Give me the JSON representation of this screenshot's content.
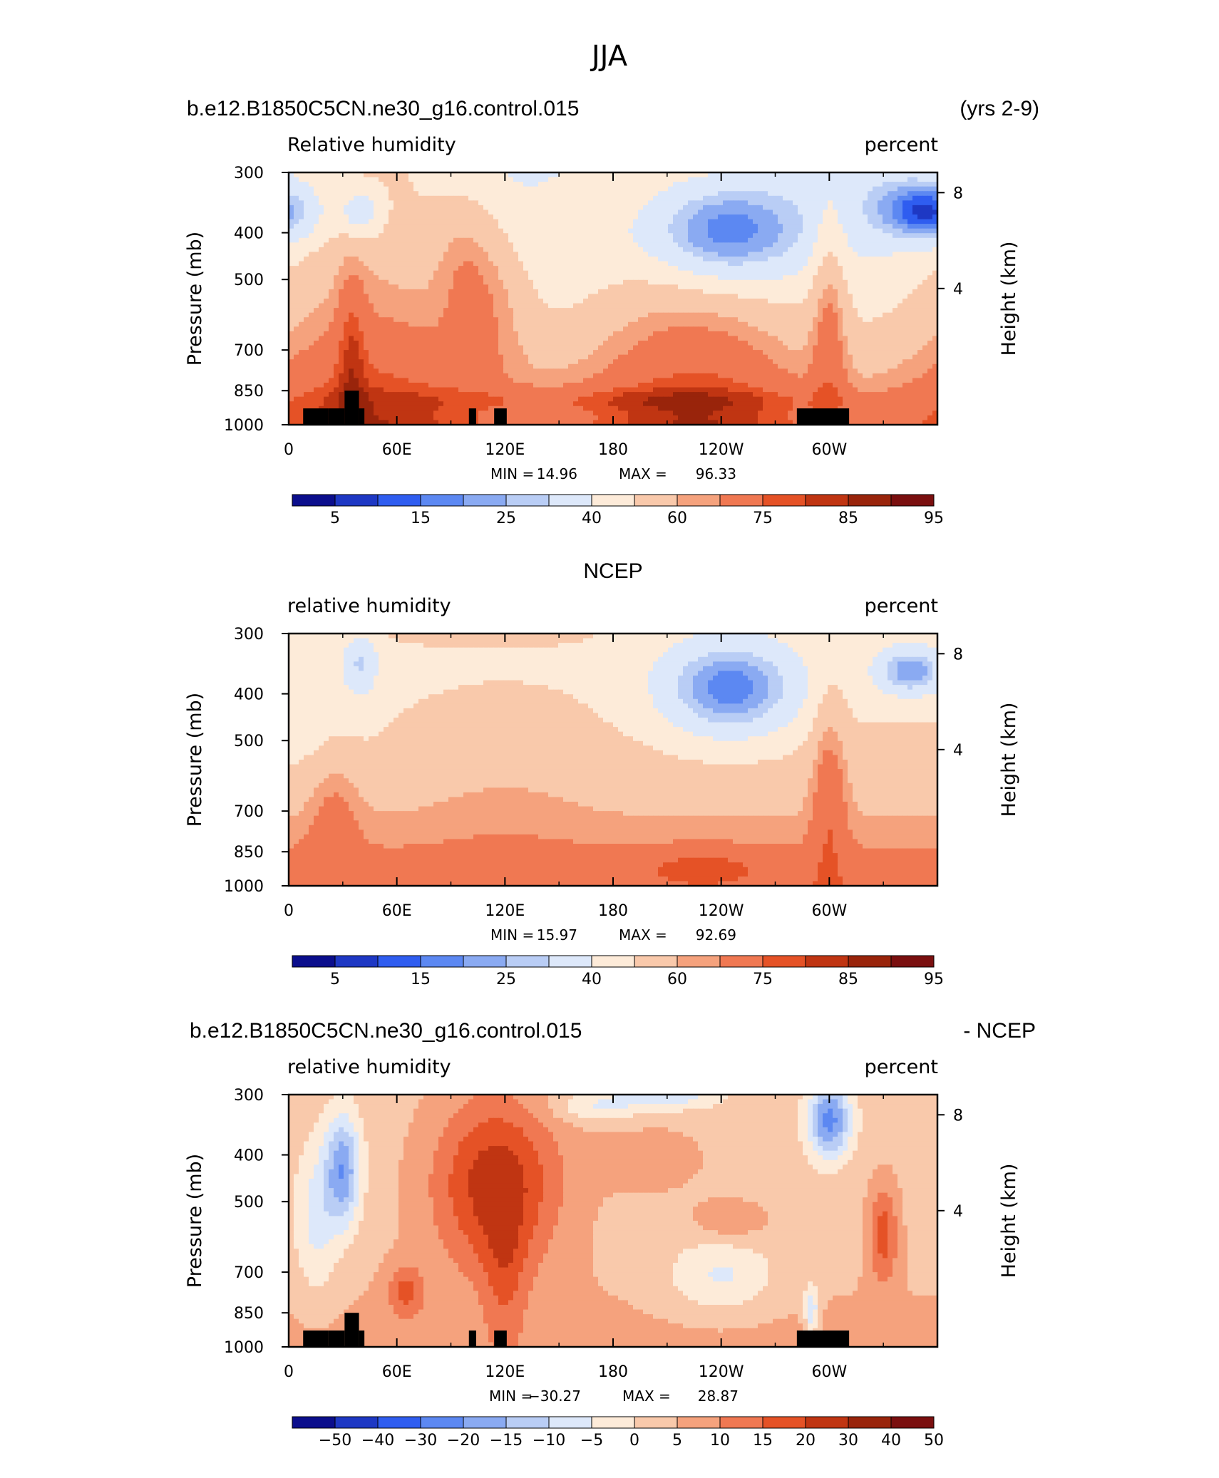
{
  "figure_title": "JJA",
  "colors": {
    "abs_palette": [
      "#0b0e8c",
      "#1e38c4",
      "#2f5df0",
      "#5c88f2",
      "#8aaaf2",
      "#b9cdf5",
      "#dde8fa",
      "#fdebd9",
      "#f9c9ab",
      "#f5a27d",
      "#f07852",
      "#e55226",
      "#c03512",
      "#99240b",
      "#7a0f0f"
    ],
    "diff_palette": [
      "#0b0e8c",
      "#1e38c4",
      "#2f5df0",
      "#5c88f2",
      "#8aaaf2",
      "#b9cdf5",
      "#dde8fa",
      "#fdebd9",
      "#f9c9ab",
      "#f5a27d",
      "#f07852",
      "#e55226",
      "#c03512",
      "#99240b",
      "#7a0f0f"
    ],
    "topography": "#000000"
  },
  "chart_data": [
    {
      "type": "heatmap",
      "title": "b.e12.B1850C5CN.ne30_g16.control.015",
      "right_title": "(yrs 2-9)",
      "left_label": "Relative humidity",
      "units": "percent",
      "xlabel": "",
      "ylabel": "Pressure (mb)",
      "ylabel_right": "Height (km)",
      "x_ticks": [
        "0",
        "60E",
        "120E",
        "180",
        "120W",
        "60W"
      ],
      "y_ticks": [
        "300",
        "400",
        "500",
        "700",
        "850",
        "1000"
      ],
      "y_right_ticks": [
        "8",
        "4"
      ],
      "xlim": [
        0,
        360
      ],
      "ylim": [
        1000,
        300
      ],
      "min_label": "MIN =",
      "min": "14.96",
      "max_label": "MAX =",
      "max": "96.33",
      "colorbar_labels": [
        "5",
        "15",
        "25",
        "40",
        "60",
        "75",
        "85",
        "95"
      ],
      "levels": [
        5,
        10,
        15,
        20,
        25,
        30,
        40,
        50,
        60,
        65,
        75,
        80,
        85,
        90,
        95
      ],
      "kind": "model"
    },
    {
      "type": "heatmap",
      "title": "NCEP",
      "right_title": "",
      "left_label": "relative humidity",
      "units": "percent",
      "xlabel": "",
      "ylabel": "Pressure (mb)",
      "ylabel_right": "Height (km)",
      "x_ticks": [
        "0",
        "60E",
        "120E",
        "180",
        "120W",
        "60W"
      ],
      "y_ticks": [
        "300",
        "400",
        "500",
        "700",
        "850",
        "1000"
      ],
      "y_right_ticks": [
        "8",
        "4"
      ],
      "xlim": [
        0,
        360
      ],
      "ylim": [
        1000,
        300
      ],
      "min_label": "MIN =",
      "min": "15.97",
      "max_label": "MAX =",
      "max": "92.69",
      "colorbar_labels": [
        "5",
        "15",
        "25",
        "40",
        "60",
        "75",
        "85",
        "95"
      ],
      "levels": [
        5,
        10,
        15,
        20,
        25,
        30,
        40,
        50,
        60,
        65,
        75,
        80,
        85,
        90,
        95
      ],
      "kind": "obs"
    },
    {
      "type": "heatmap",
      "title": "b.e12.B1850C5CN.ne30_g16.control.015",
      "right_title": "- NCEP",
      "left_label": "relative humidity",
      "units": "percent",
      "xlabel": "",
      "ylabel": "Pressure (mb)",
      "ylabel_right": "Height (km)",
      "x_ticks": [
        "0",
        "60E",
        "120E",
        "180",
        "120W",
        "60W"
      ],
      "y_ticks": [
        "300",
        "400",
        "500",
        "700",
        "850",
        "1000"
      ],
      "y_right_ticks": [
        "8",
        "4"
      ],
      "xlim": [
        0,
        360
      ],
      "ylim": [
        1000,
        300
      ],
      "min_label": "MIN =",
      "min": "−30.27",
      "max_label": "MAX =",
      "max": "28.87",
      "colorbar_labels": [
        "−50",
        "−40",
        "−30",
        "−20",
        "−15",
        "−10",
        "−5",
        "0",
        "5",
        "10",
        "15",
        "20",
        "30",
        "40",
        "50"
      ],
      "levels": [
        -50,
        -40,
        -30,
        -20,
        -15,
        -10,
        -5,
        0,
        5,
        10,
        15,
        20,
        30,
        40,
        50
      ],
      "kind": "diff"
    }
  ]
}
